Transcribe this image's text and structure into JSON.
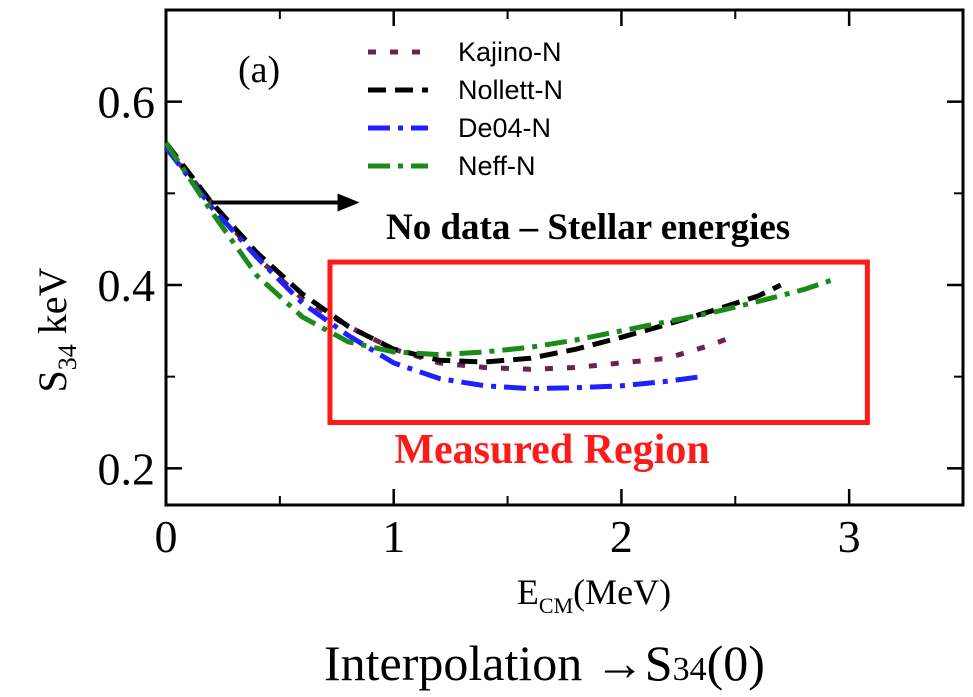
{
  "chart_data": {
    "type": "line",
    "panel_label": "(a)",
    "xlabel": {
      "main": "E",
      "sub": "CM",
      "rest": "(MeV)"
    },
    "ylabel": {
      "main": "S",
      "sub": "34",
      "rest": " keV"
    },
    "xlim": [
      0,
      3.5
    ],
    "ylim": [
      0.16,
      0.7
    ],
    "xticks": [
      0,
      1,
      2,
      3
    ],
    "xtick_labels": [
      "0",
      "1",
      "2",
      "3"
    ],
    "yticks": [
      0.2,
      0.4,
      0.6
    ],
    "ytick_labels": [
      "0.2",
      "0.4",
      "0.6"
    ],
    "x_minor_ticks": [
      0.5,
      1.5,
      2.5
    ],
    "y_minor_ticks": [
      0.3,
      0.5
    ],
    "legend_position": "top-center",
    "series": [
      {
        "name": "Kajino-N",
        "color": "#6b2450",
        "style": "dotted",
        "x": [
          0,
          0.2,
          0.4,
          0.6,
          0.8,
          1.0,
          1.2,
          1.4,
          1.6,
          1.8,
          2.0,
          2.2,
          2.4,
          2.5
        ],
        "y": [
          0.55,
          0.49,
          0.43,
          0.385,
          0.355,
          0.33,
          0.315,
          0.31,
          0.308,
          0.31,
          0.315,
          0.32,
          0.335,
          0.345
        ]
      },
      {
        "name": "Nollett-N",
        "color": "#000000",
        "style": "dashed",
        "x": [
          0,
          0.2,
          0.4,
          0.6,
          0.8,
          1.0,
          1.2,
          1.4,
          1.6,
          1.8,
          2.0,
          2.2,
          2.4,
          2.6,
          2.7
        ],
        "y": [
          0.555,
          0.49,
          0.435,
          0.39,
          0.355,
          0.33,
          0.318,
          0.316,
          0.32,
          0.33,
          0.343,
          0.357,
          0.372,
          0.388,
          0.4
        ]
      },
      {
        "name": "De04-N",
        "color": "#1f1fff",
        "style": "dashdot",
        "x": [
          0,
          0.2,
          0.4,
          0.6,
          0.8,
          1.0,
          1.2,
          1.4,
          1.6,
          1.8,
          2.0,
          2.2,
          2.35
        ],
        "y": [
          0.55,
          0.485,
          0.43,
          0.38,
          0.345,
          0.315,
          0.298,
          0.29,
          0.287,
          0.288,
          0.29,
          0.295,
          0.3
        ]
      },
      {
        "name": "Neff-N",
        "color": "#1a8a1a",
        "style": "dashdot",
        "x": [
          0,
          0.2,
          0.4,
          0.6,
          0.8,
          1.0,
          1.2,
          1.4,
          1.6,
          1.8,
          2.0,
          2.2,
          2.4,
          2.6,
          2.8,
          2.92
        ],
        "y": [
          0.555,
          0.48,
          0.41,
          0.365,
          0.338,
          0.327,
          0.324,
          0.327,
          0.332,
          0.34,
          0.35,
          0.36,
          0.37,
          0.382,
          0.395,
          0.405
        ]
      }
    ],
    "annotations": {
      "arrow_label": "No data – Stellar energies",
      "arrow_from": {
        "x": 0.2,
        "y": 0.49
      },
      "arrow_to": {
        "x": 0.85,
        "y": 0.49
      },
      "region_label": "Measured Region",
      "region_box": {
        "x0": 0.72,
        "x1": 3.08,
        "y0": 0.25,
        "y1": 0.425
      },
      "region_color": "#ff1a1a"
    },
    "footer": {
      "text": "Interpolation →S",
      "sub": "34",
      "rest": "(0)"
    }
  }
}
